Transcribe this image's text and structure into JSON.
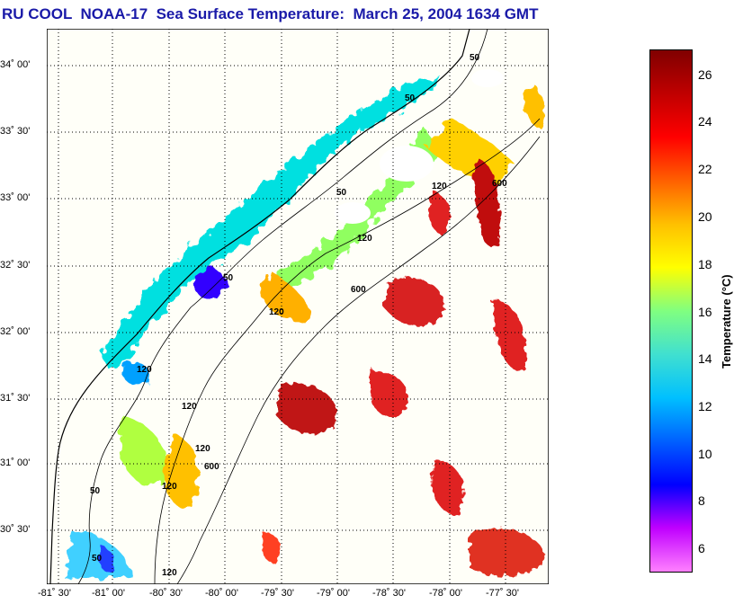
{
  "title": "RU COOL  NOAA-17  Sea Surface Temperature:  March 25, 2004 1634 GMT",
  "map": {
    "lat_labels": [
      "34˚ 00'",
      "33˚ 30'",
      "33˚ 00'",
      "32˚ 30'",
      "32˚ 00'",
      "31˚ 30'",
      "31˚ 00'",
      "30˚ 30'"
    ],
    "lon_labels": [
      "-81˚ 30'",
      "-81˚ 00'",
      "-80˚ 30'",
      "-80˚ 00'",
      "-79˚ 30'",
      "-79˚ 00'",
      "-78˚ 30'",
      "-78˚ 00'",
      "-77˚ 30'"
    ],
    "contour_labels": [
      "50",
      "50",
      "50",
      "120",
      "120",
      "600",
      "120",
      "600",
      "50",
      "120",
      "120",
      "120",
      "600",
      "50",
      "50",
      "120",
      "120"
    ]
  },
  "colorbar": {
    "title": "Temperature (°C)",
    "ticks": [
      "26",
      "24",
      "22",
      "20",
      "18",
      "16",
      "14",
      "12",
      "10",
      "8",
      "6"
    ],
    "colors": [
      "#ff80ff",
      "#c000ff",
      "#0000ff",
      "#0060ff",
      "#00c0ff",
      "#40e0d0",
      "#80ff80",
      "#ffff00",
      "#ffc000",
      "#ff6000",
      "#ff0000",
      "#c00000",
      "#800000"
    ]
  }
}
